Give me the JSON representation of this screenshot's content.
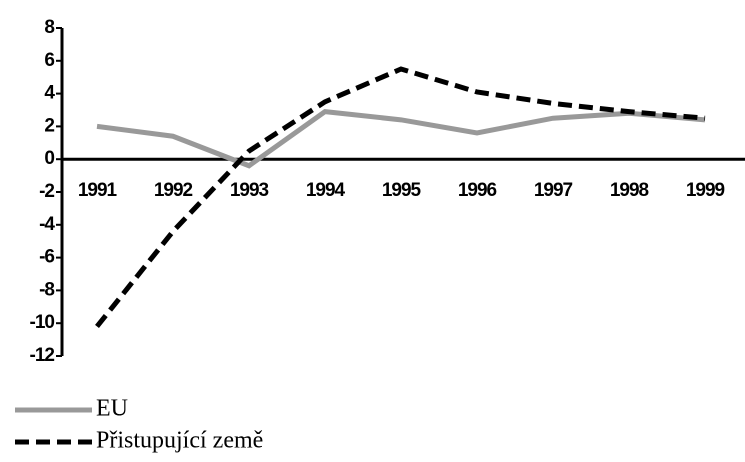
{
  "chart_data": {
    "type": "line",
    "categories": [
      "1991",
      "1992",
      "1993",
      "1994",
      "1995",
      "1996",
      "1997",
      "1998",
      "1999"
    ],
    "series": [
      {
        "name": "EU",
        "color": "#999999",
        "dash": false,
        "values": [
          2.0,
          1.4,
          -0.4,
          2.9,
          2.4,
          1.6,
          2.5,
          2.8,
          2.4
        ]
      },
      {
        "name": "Přistupující země",
        "color": "#000000",
        "dash": true,
        "values": [
          -10.2,
          -4.4,
          0.5,
          3.5,
          5.5,
          4.1,
          3.4,
          2.9,
          2.5
        ]
      }
    ],
    "ylim": [
      -12,
      8
    ],
    "yticks": [
      -12,
      -10,
      -8,
      -6,
      -4,
      -2,
      0,
      2,
      4,
      6,
      8
    ],
    "grid": false,
    "legend": "bottom-left"
  }
}
